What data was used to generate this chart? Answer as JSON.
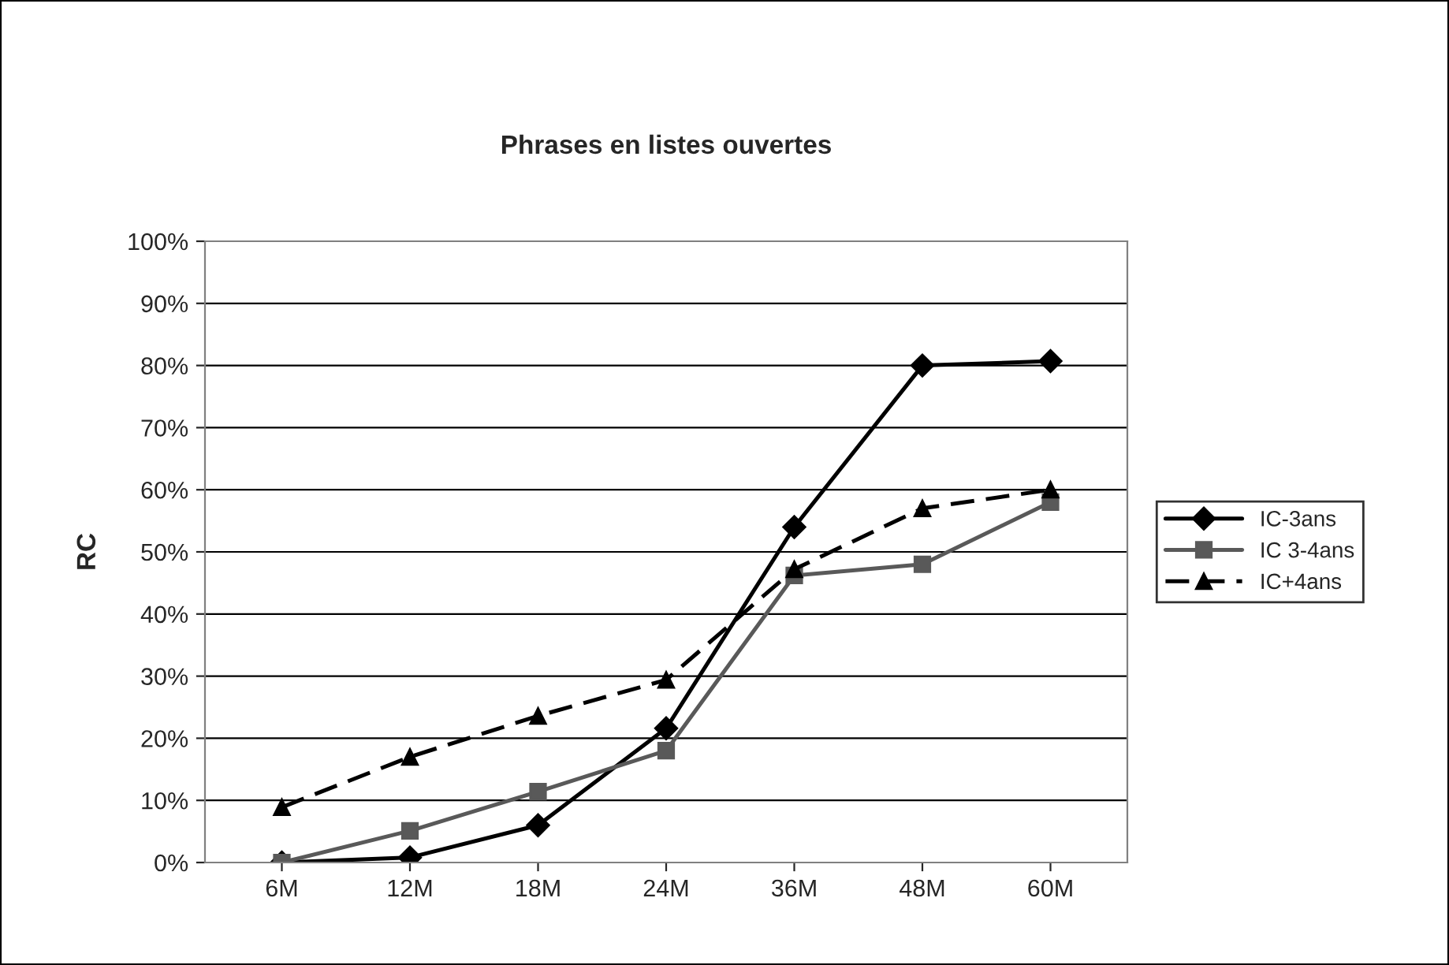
{
  "chart_data": {
    "type": "line",
    "title": "Phrases en listes ouvertes",
    "ylabel": "RC",
    "categories": [
      "6M",
      "12M",
      "18M",
      "24M",
      "36M",
      "48M",
      "60M"
    ],
    "series": [
      {
        "name": "IC-3ans",
        "color": "#000000",
        "marker": "diamond",
        "line_style": "solid",
        "values": [
          0,
          0.8,
          6,
          21.6,
          54,
          80,
          80.7
        ]
      },
      {
        "name": "IC 3-4ans",
        "color": "#595959",
        "marker": "square",
        "line_style": "solid",
        "values": [
          0,
          5.1,
          11.4,
          18,
          46.2,
          48,
          58
        ]
      },
      {
        "name": "IC+4ans",
        "color": "#000000",
        "marker": "triangle",
        "line_style": "dashed",
        "values": [
          8.9,
          17,
          23.6,
          29.4,
          47.2,
          57,
          60
        ]
      }
    ],
    "ylim": [
      0,
      100
    ],
    "yticks": [
      {
        "value": 0,
        "label": "0%"
      },
      {
        "value": 10,
        "label": "10%"
      },
      {
        "value": 20,
        "label": "20%"
      },
      {
        "value": 30,
        "label": "30%"
      },
      {
        "value": 40,
        "label": "40%"
      },
      {
        "value": 50,
        "label": "50%"
      },
      {
        "value": 60,
        "label": "60%"
      },
      {
        "value": 70,
        "label": "70%"
      },
      {
        "value": 80,
        "label": "80%"
      },
      {
        "value": 90,
        "label": "90%"
      },
      {
        "value": 100,
        "label": "100%"
      }
    ],
    "grid": "y",
    "legend": "right"
  }
}
